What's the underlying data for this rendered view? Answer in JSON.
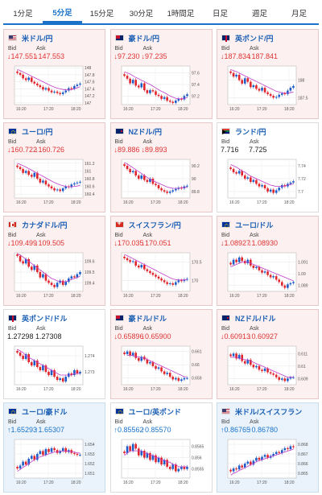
{
  "tabs": [
    {
      "label": "1分足",
      "active": false
    },
    {
      "label": "5分足",
      "active": true
    },
    {
      "label": "15分足",
      "active": false
    },
    {
      "label": "30分足",
      "active": false
    },
    {
      "label": "1時間足",
      "active": false
    },
    {
      "label": "日足",
      "active": false
    },
    {
      "label": "週足",
      "active": false
    },
    {
      "label": "月足",
      "active": false
    }
  ],
  "labels": {
    "bid": "Bid",
    "ask": "Ask"
  },
  "x_ticks": [
    "16:20",
    "17:20",
    "18:20"
  ],
  "colors": {
    "up_candle": "#1e5cc8",
    "down_candle": "#e0242c",
    "ma_line": "#c03cc8",
    "down_text": "#dd3333",
    "up_text": "#1a73c8"
  },
  "cards": [
    {
      "name": "米ドル/円",
      "flag": "us",
      "dir": "down",
      "bg": "down",
      "bid": "147.551",
      "ask": "147.553",
      "y_ticks": [
        "148",
        "147.8",
        "147.6",
        "147.4",
        "147.2",
        "147"
      ],
      "ylim": [
        146.95,
        148.05
      ],
      "close": [
        147.85,
        147.8,
        147.7,
        147.65,
        147.72,
        147.6,
        147.55,
        147.5,
        147.45,
        147.38,
        147.42,
        147.35,
        147.3,
        147.32,
        147.28,
        147.25,
        147.3,
        147.35,
        147.42,
        147.4,
        147.48,
        147.52,
        147.55
      ],
      "ma": [
        147.95,
        147.92,
        147.88,
        147.84,
        147.8,
        147.76,
        147.72,
        147.68,
        147.64,
        147.6,
        147.56,
        147.52,
        147.48,
        147.45,
        147.42,
        147.4,
        147.38,
        147.37,
        147.37,
        147.38,
        147.4,
        147.43,
        147.46
      ]
    },
    {
      "name": "豪ドル/円",
      "flag": "au",
      "dir": "down",
      "bg": "down",
      "bid": "97.230",
      "ask": "97.235",
      "y_ticks": [
        "97.6",
        "97.4",
        "97.2"
      ],
      "ylim": [
        97.05,
        97.72
      ],
      "close": [
        97.55,
        97.5,
        97.42,
        97.48,
        97.38,
        97.35,
        97.42,
        97.3,
        97.25,
        97.3,
        97.28,
        97.22,
        97.2,
        97.15,
        97.18,
        97.12,
        97.1,
        97.08,
        97.12,
        97.15,
        97.14,
        97.2,
        97.23
      ],
      "ma": [
        97.62,
        97.6,
        97.58,
        97.55,
        97.52,
        97.5,
        97.47,
        97.45,
        97.42,
        97.4,
        97.37,
        97.34,
        97.31,
        97.28,
        97.26,
        97.23,
        97.2,
        97.18,
        97.16,
        97.15,
        97.15,
        97.16,
        97.17
      ]
    },
    {
      "name": "英ポンド/円",
      "flag": "gb",
      "dir": "down",
      "bg": "down",
      "bid": "187.834",
      "ask": "187.841",
      "y_ticks": [
        "188",
        "187.5"
      ],
      "ylim": [
        187.3,
        188.4
      ],
      "close": [
        188.2,
        188.1,
        188.15,
        188.0,
        187.9,
        188.05,
        187.95,
        187.8,
        187.85,
        187.75,
        187.7,
        187.78,
        187.65,
        187.6,
        187.55,
        187.5,
        187.52,
        187.58,
        187.62,
        187.6,
        187.7,
        187.78,
        187.83
      ],
      "ma": [
        188.3,
        188.27,
        188.24,
        188.2,
        188.16,
        188.12,
        188.08,
        188.04,
        188.0,
        187.96,
        187.92,
        187.88,
        187.84,
        187.8,
        187.76,
        187.72,
        187.68,
        187.66,
        187.64,
        187.63,
        187.63,
        187.64,
        187.66
      ]
    },
    {
      "name": "ユーロ/円",
      "flag": "eu",
      "dir": "down",
      "bg": "down",
      "bid": "160.722",
      "ask": "160.726",
      "y_ticks": [
        "161.2",
        "161",
        "160.8",
        "160.6",
        "160.4"
      ],
      "ylim": [
        160.3,
        161.3
      ],
      "close": [
        161.1,
        161.05,
        160.95,
        161.0,
        160.9,
        160.85,
        160.95,
        160.8,
        160.7,
        160.75,
        160.65,
        160.6,
        160.55,
        160.5,
        160.52,
        160.48,
        160.55,
        160.6,
        160.58,
        160.65,
        160.68,
        160.7,
        160.72
      ],
      "ma": [
        161.2,
        161.17,
        161.14,
        161.1,
        161.06,
        161.02,
        160.98,
        160.94,
        160.9,
        160.86,
        160.82,
        160.78,
        160.74,
        160.7,
        160.67,
        160.64,
        160.62,
        160.6,
        160.59,
        160.59,
        160.6,
        160.61,
        160.63
      ]
    },
    {
      "name": "NZドル/円",
      "flag": "nz",
      "dir": "down",
      "bg": "down",
      "bid": "89.886",
      "ask": "89.893",
      "y_ticks": [
        "90.2",
        "90",
        "89.8"
      ],
      "ylim": [
        89.7,
        90.3
      ],
      "close": [
        90.2,
        90.15,
        90.1,
        90.12,
        90.05,
        90.0,
        90.05,
        89.98,
        89.95,
        90.0,
        89.92,
        89.9,
        89.85,
        89.82,
        89.8,
        89.78,
        89.8,
        89.82,
        89.84,
        89.86,
        89.85,
        89.88,
        89.89
      ],
      "ma": [
        90.25,
        90.23,
        90.2,
        90.17,
        90.14,
        90.11,
        90.08,
        90.05,
        90.02,
        89.99,
        89.97,
        89.95,
        89.93,
        89.91,
        89.89,
        89.87,
        89.86,
        89.85,
        89.85,
        89.85,
        89.86,
        89.86,
        89.87
      ]
    },
    {
      "name": "ランド/円",
      "flag": "za",
      "dir": "flat",
      "bg": "neutral",
      "bid": "7.716",
      "ask": "7.725",
      "y_ticks": [
        "7.74",
        "7.72",
        "7.7"
      ],
      "ylim": [
        7.69,
        7.75
      ],
      "close": [
        7.735,
        7.73,
        7.728,
        7.732,
        7.725,
        7.72,
        7.722,
        7.715,
        7.718,
        7.712,
        7.708,
        7.71,
        7.705,
        7.7,
        7.703,
        7.698,
        7.702,
        7.706,
        7.71,
        7.708,
        7.712,
        7.714,
        7.716
      ],
      "ma": [
        7.742,
        7.74,
        7.738,
        7.735,
        7.732,
        7.73,
        7.727,
        7.724,
        7.722,
        7.72,
        7.718,
        7.716,
        7.714,
        7.712,
        7.71,
        7.709,
        7.708,
        7.708,
        7.708,
        7.709,
        7.71,
        7.711,
        7.712
      ]
    },
    {
      "name": "カナダドル/円",
      "flag": "ca",
      "dir": "down",
      "bg": "down",
      "bid": "109.499",
      "ask": "109.505",
      "y_ticks": [
        "109.6",
        "109.5",
        "109.4"
      ],
      "ylim": [
        109.32,
        109.68
      ],
      "close": [
        109.65,
        109.6,
        109.58,
        109.62,
        109.55,
        109.52,
        109.56,
        109.5,
        109.45,
        109.48,
        109.42,
        109.4,
        109.38,
        109.36,
        109.4,
        109.42,
        109.38,
        109.41,
        109.44,
        109.46,
        109.45,
        109.48,
        109.5
      ],
      "ma": [
        109.67,
        109.66,
        109.64,
        109.62,
        109.6,
        109.58,
        109.56,
        109.54,
        109.52,
        109.5,
        109.48,
        109.46,
        109.44,
        109.43,
        109.42,
        109.41,
        109.41,
        109.41,
        109.42,
        109.43,
        109.44,
        109.45,
        109.46
      ]
    },
    {
      "name": "スイスフラン/円",
      "flag": "ch",
      "dir": "down",
      "bg": "down",
      "bid": "170.035",
      "ask": "170.051",
      "y_ticks": [
        "170.5",
        "170"
      ],
      "ylim": [
        169.7,
        170.75
      ],
      "close": [
        170.6,
        170.55,
        170.5,
        170.52,
        170.4,
        170.35,
        170.42,
        170.3,
        170.25,
        170.2,
        170.15,
        170.1,
        170.05,
        170.0,
        169.95,
        169.9,
        169.92,
        169.88,
        169.95,
        170.0,
        169.98,
        170.02,
        170.04
      ],
      "ma": [
        170.7,
        170.67,
        170.63,
        170.59,
        170.55,
        170.51,
        170.47,
        170.43,
        170.39,
        170.35,
        170.31,
        170.27,
        170.23,
        170.19,
        170.15,
        170.11,
        170.07,
        170.04,
        170.02,
        170.01,
        170.01,
        170.01,
        170.02
      ]
    },
    {
      "name": "ユーロ/ドル",
      "flag": "eu",
      "dir": "down",
      "bg": "down",
      "bid": "1.08927",
      "ask": "1.08930",
      "y_ticks": [
        "1.091",
        "1.09",
        "1.089"
      ],
      "ylim": [
        1.0885,
        1.0918
      ],
      "close": [
        1.0908,
        1.0912,
        1.091,
        1.0914,
        1.0911,
        1.0909,
        1.0912,
        1.0907,
        1.0905,
        1.0906,
        1.0903,
        1.0901,
        1.0902,
        1.0899,
        1.0897,
        1.0898,
        1.0895,
        1.0893,
        1.089,
        1.0888,
        1.0891,
        1.0892,
        1.0893
      ],
      "ma": [
        1.0906,
        1.0907,
        1.0908,
        1.0909,
        1.091,
        1.091,
        1.091,
        1.0909,
        1.0908,
        1.0907,
        1.0906,
        1.0905,
        1.0904,
        1.0903,
        1.0902,
        1.0901,
        1.09,
        1.0899,
        1.0898,
        1.0897,
        1.0896,
        1.0895,
        1.0894
      ]
    },
    {
      "name": "英ポンド/ドル",
      "flag": "gb",
      "dir": "flat",
      "bg": "neutral",
      "bid": "1.27298",
      "ask": "1.27308",
      "y_ticks": [
        "1.274",
        "1.273"
      ],
      "ylim": [
        1.2722,
        1.2746
      ],
      "close": [
        1.2742,
        1.274,
        1.2738,
        1.2741,
        1.2736,
        1.2734,
        1.2737,
        1.2733,
        1.2731,
        1.2734,
        1.273,
        1.2728,
        1.2731,
        1.2727,
        1.2725,
        1.2726,
        1.2724,
        1.2727,
        1.2729,
        1.2728,
        1.2731,
        1.2729,
        1.273
      ],
      "ma": [
        1.2744,
        1.2743,
        1.2742,
        1.274,
        1.2739,
        1.2738,
        1.2737,
        1.2736,
        1.2735,
        1.2734,
        1.2733,
        1.2732,
        1.2731,
        1.273,
        1.2729,
        1.2728,
        1.2728,
        1.2728,
        1.2728,
        1.2728,
        1.2729,
        1.2729,
        1.2729
      ]
    },
    {
      "name": "豪ドル/ドル",
      "flag": "au",
      "dir": "down",
      "bg": "down",
      "bid": "0.65896",
      "ask": "0.65900",
      "y_ticks": [
        "0.661",
        "0.66",
        "0.659"
      ],
      "ylim": [
        0.6585,
        0.6614
      ],
      "close": [
        0.6608,
        0.661,
        0.6607,
        0.6609,
        0.6605,
        0.6603,
        0.6606,
        0.6604,
        0.6601,
        0.6602,
        0.6599,
        0.6597,
        0.6598,
        0.6595,
        0.6593,
        0.6594,
        0.6591,
        0.6589,
        0.659,
        0.6588,
        0.6589,
        0.659,
        0.659
      ],
      "ma": [
        1.0,
        0.6607,
        0.6607,
        0.6607,
        0.6606,
        0.6606,
        0.6605,
        0.6605,
        0.6604,
        0.6603,
        0.6602,
        0.6601,
        0.66,
        0.6599,
        0.6598,
        0.6597,
        0.6596,
        0.6595,
        0.6594,
        0.6593,
        0.6592,
        0.6591,
        0.6591
      ],
      "ma_start": 1
    },
    {
      "name": "NZドル/ドル",
      "flag": "nz",
      "dir": "down",
      "bg": "down",
      "bid": "0.60913",
      "ask": "0.60927",
      "y_ticks": [
        "0.611",
        "0.61",
        "0.609"
      ],
      "ylim": [
        0.6085,
        0.6116
      ],
      "close": [
        0.6108,
        0.611,
        0.6106,
        0.6109,
        0.6104,
        0.6102,
        0.6105,
        0.6101,
        0.6099,
        0.61,
        0.6097,
        0.6096,
        0.6098,
        0.6095,
        0.6094,
        0.6093,
        0.6091,
        0.6089,
        0.609,
        0.6088,
        0.609,
        0.6091,
        0.6091
      ],
      "ma": [
        0.6107,
        0.6107,
        0.6107,
        0.6106,
        0.6106,
        0.6105,
        0.6105,
        0.6104,
        0.6103,
        0.6102,
        0.6101,
        0.61,
        0.6099,
        0.6098,
        0.6097,
        0.6096,
        0.6095,
        0.6094,
        0.6093,
        0.6092,
        0.6091,
        0.6091,
        0.6091
      ]
    },
    {
      "name": "ユーロ/豪ドル",
      "flag": "eu",
      "dir": "up",
      "bg": "up",
      "bid": "1.65293",
      "ask": "1.65307",
      "y_ticks": [
        "1.654",
        "1.653",
        "1.652",
        "1.651"
      ],
      "ylim": [
        1.6505,
        1.6545
      ],
      "close": [
        1.6515,
        1.6518,
        1.6522,
        1.6519,
        1.6525,
        1.6528,
        1.6524,
        1.653,
        1.6533,
        1.6529,
        1.6535,
        1.6532,
        1.6536,
        1.6534,
        1.6531,
        1.6533,
        1.6536,
        1.6532,
        1.6534,
        1.6531,
        1.653,
        1.6529,
        1.6529
      ],
      "ma": [
        1.6512,
        1.6514,
        1.6516,
        1.6518,
        1.652,
        1.6522,
        1.6524,
        1.6526,
        1.6527,
        1.6528,
        1.6529,
        1.653,
        1.6531,
        1.6532,
        1.6532,
        1.6533,
        1.6533,
        1.6533,
        1.6533,
        1.6532,
        1.6532,
        1.6531,
        1.6531
      ]
    },
    {
      "name": "ユーロ/英ポンド",
      "flag": "eu",
      "dir": "up",
      "bg": "neutral",
      "bid": "0.85562",
      "ask": "0.85570",
      "y_ticks": [
        "0.8565",
        "0.856",
        "0.8555"
      ],
      "ylim": [
        0.8551,
        0.8568
      ],
      "close": [
        0.8562,
        0.8565,
        0.8563,
        0.8566,
        0.8564,
        0.8561,
        0.8563,
        0.856,
        0.8562,
        0.8559,
        0.8561,
        0.8558,
        0.856,
        0.8557,
        0.8559,
        0.8556,
        0.8555,
        0.8557,
        0.8554,
        0.8555,
        0.8556,
        0.8555,
        0.8556
      ],
      "ma": [
        0.8561,
        0.8562,
        0.8563,
        0.8563,
        0.8563,
        0.8563,
        0.8563,
        0.8562,
        0.8562,
        0.8561,
        0.8561,
        0.856,
        0.856,
        0.8559,
        0.8559,
        0.8558,
        0.8558,
        0.8557,
        0.8557,
        0.8556,
        0.8556,
        0.8556,
        0.8556
      ]
    },
    {
      "name": "米ドル/スイスフラン",
      "flag": "us",
      "dir": "up",
      "bg": "up",
      "bid": "0.86765",
      "ask": "0.86780",
      "y_ticks": [
        "0.868",
        "0.867",
        "0.866",
        "0.865"
      ],
      "ylim": [
        0.8645,
        0.8685
      ],
      "close": [
        0.8652,
        0.8655,
        0.8654,
        0.8658,
        0.8656,
        0.866,
        0.8662,
        0.8659,
        0.8663,
        0.8666,
        0.8664,
        0.8667,
        0.8669,
        0.8666,
        0.8668,
        0.867,
        0.8672,
        0.8671,
        0.8674,
        0.8676,
        0.8675,
        0.8678,
        0.8677
      ],
      "ma": [
        0.8648,
        0.865,
        0.8651,
        0.8653,
        0.8654,
        0.8656,
        0.8657,
        0.8659,
        0.866,
        0.8662,
        0.8663,
        0.8664,
        0.8665,
        0.8666,
        0.8667,
        0.8668,
        0.8669,
        0.867,
        0.8671,
        0.8672,
        0.8673,
        0.8674,
        0.8675
      ]
    }
  ]
}
